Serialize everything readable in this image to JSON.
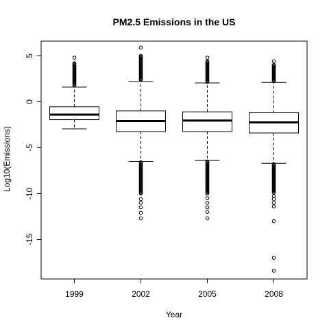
{
  "chart_data": {
    "type": "boxplot",
    "title": "PM2.5 Emissions in the US",
    "xlabel": "Year",
    "ylabel": "Log10(Emissions)",
    "categories": [
      "1999",
      "2002",
      "2005",
      "2008"
    ],
    "ylim": [
      -19.3,
      6.6
    ],
    "yticks": [
      5,
      0,
      -5,
      -10,
      -15
    ],
    "ytick_labels": [
      "5",
      "0",
      "-5",
      "-10",
      "-15"
    ],
    "grid": false,
    "boxes": [
      {
        "category": "1999",
        "whisker_low": -2.95,
        "q1": -1.95,
        "median": -1.4,
        "q3": -0.55,
        "whisker_high": 1.6,
        "outliers_low": [],
        "outliers_high_range": [
          1.7,
          4.2
        ],
        "outliers_high_extra": [
          4.8
        ]
      },
      {
        "category": "2002",
        "whisker_low": -6.5,
        "q1": -3.25,
        "median": -2.1,
        "q3": -1.0,
        "whisker_high": 2.2,
        "outliers_low_range": [
          -10.0,
          -6.6
        ],
        "outliers_low_extra": [
          -10.6,
          -11.0,
          -11.5,
          -12.1,
          -12.7
        ],
        "outliers_high_range": [
          2.3,
          5.0
        ],
        "outliers_high_extra": [
          5.9
        ]
      },
      {
        "category": "2005",
        "whisker_low": -6.4,
        "q1": -3.25,
        "median": -2.05,
        "q3": -1.1,
        "whisker_high": 2.05,
        "outliers_low_range": [
          -10.0,
          -6.5
        ],
        "outliers_low_extra": [
          -10.5,
          -11.0,
          -11.5,
          -12.0,
          -12.7
        ],
        "outliers_high_range": [
          2.15,
          4.4
        ],
        "outliers_high_extra": [
          4.8
        ]
      },
      {
        "category": "2008",
        "whisker_low": -6.7,
        "q1": -3.4,
        "median": -2.25,
        "q3": -1.2,
        "whisker_high": 2.1,
        "outliers_low_range": [
          -10.0,
          -6.8
        ],
        "outliers_low_extra": [
          -10.3,
          -10.6,
          -11.0,
          -11.4,
          -13.0,
          -17.0,
          -18.4
        ],
        "outliers_high_range": [
          2.2,
          4.0
        ],
        "outliers_high_extra": [
          4.4
        ]
      }
    ]
  }
}
